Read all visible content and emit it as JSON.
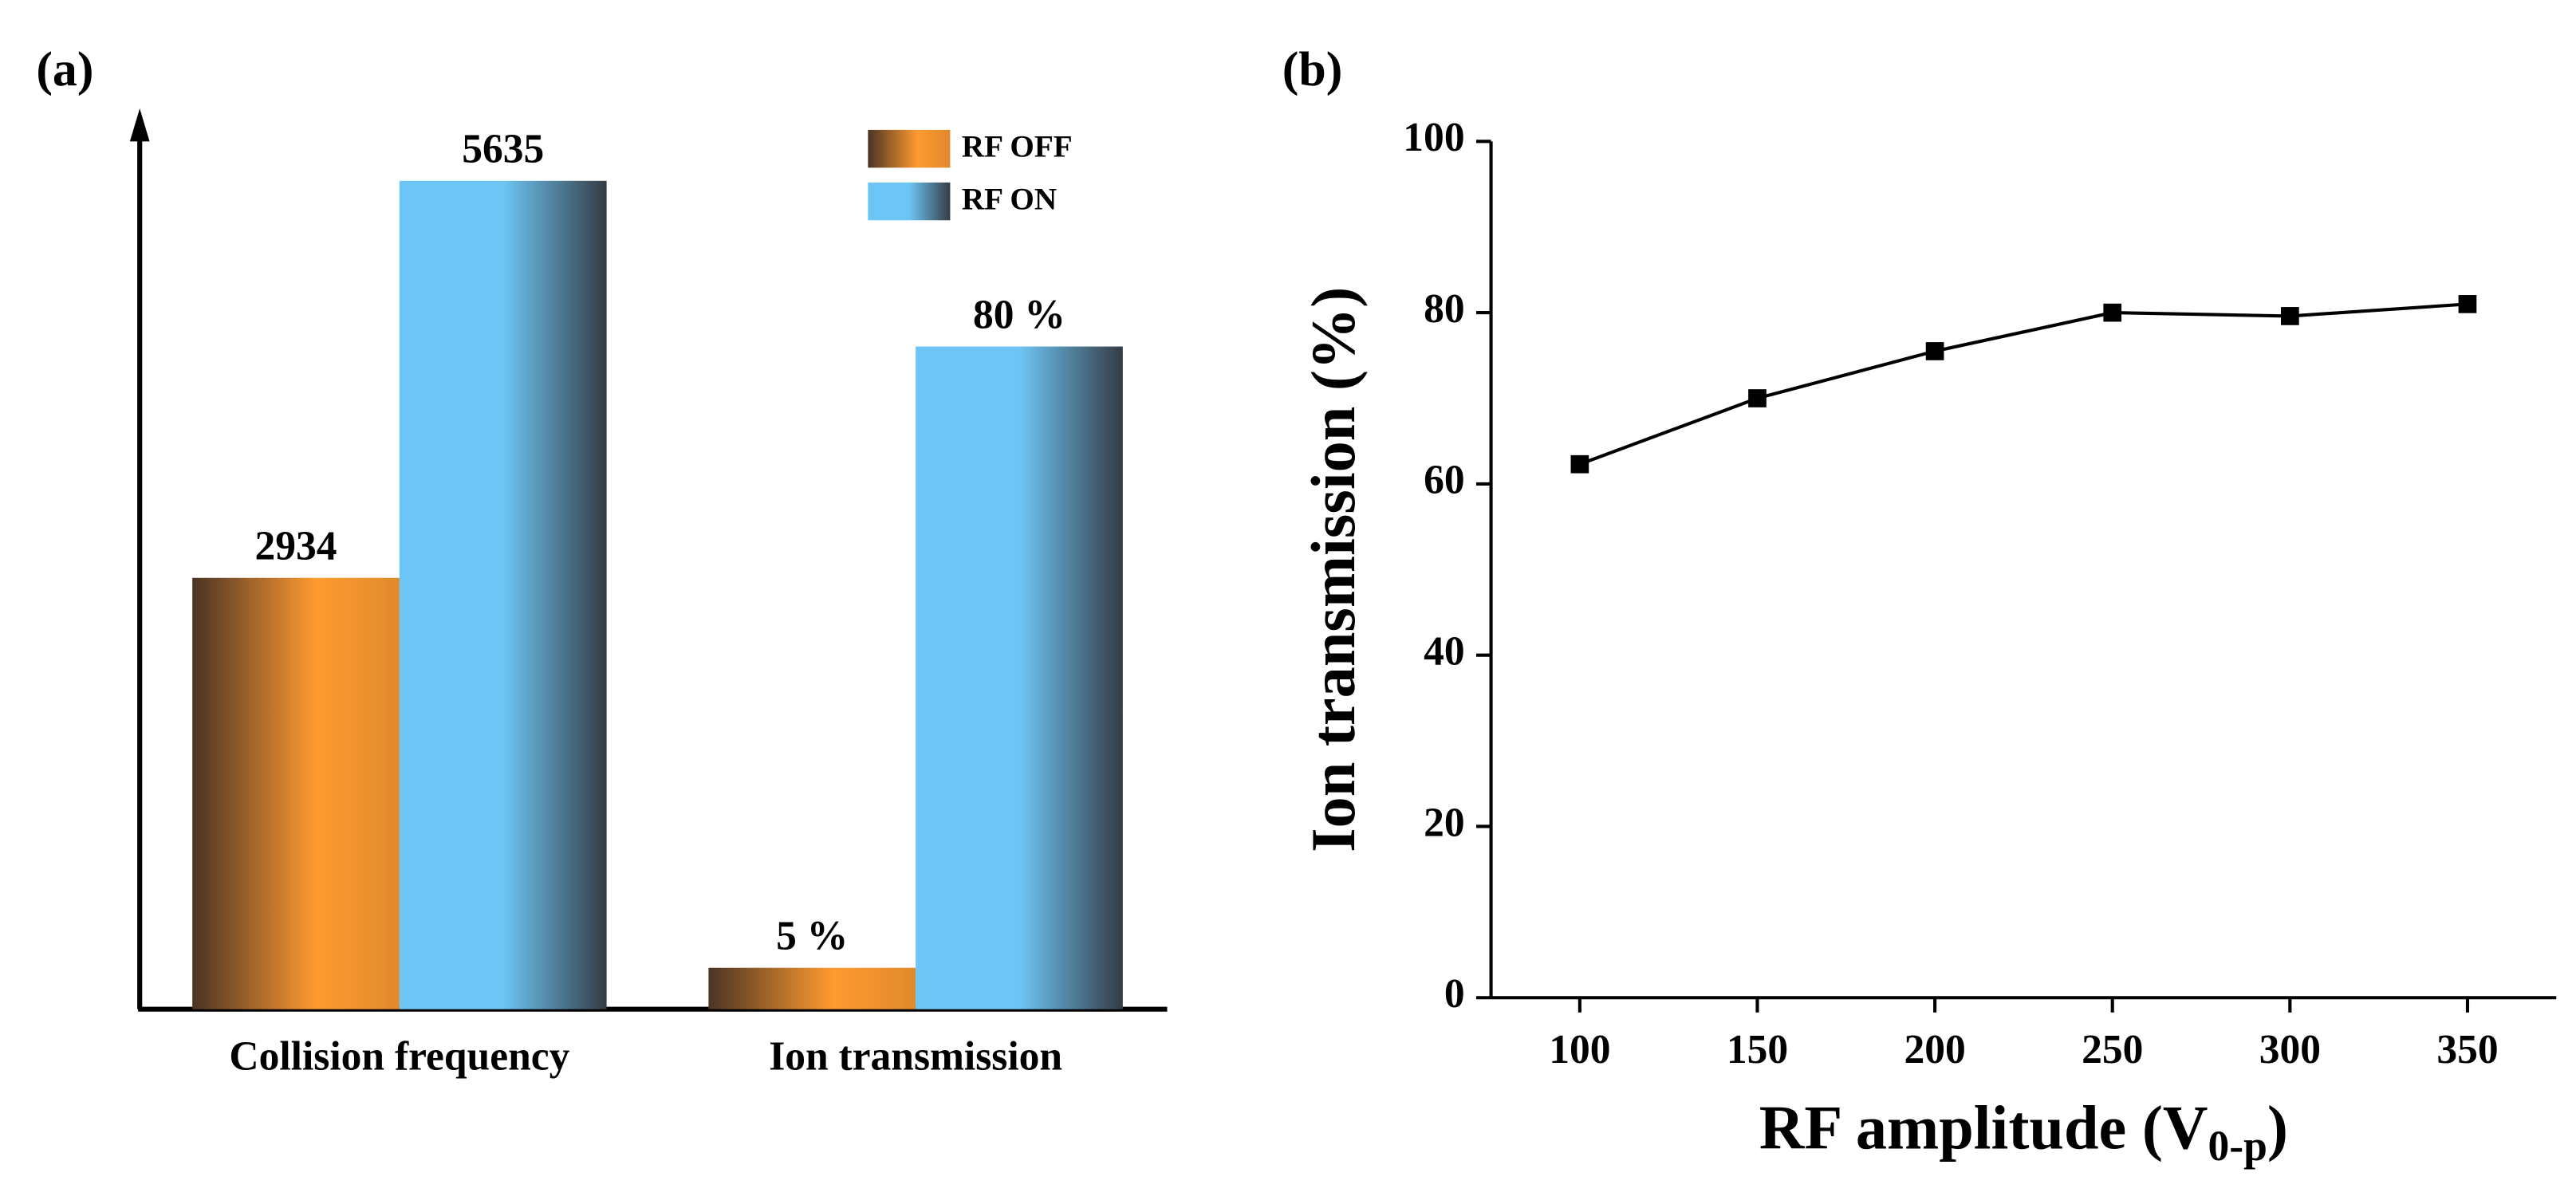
{
  "chart_data": [
    {
      "type": "bar",
      "panel": "(a)",
      "categories": [
        "Collision frequency",
        "Ion transmission"
      ],
      "series": [
        {
          "name": "RF OFF",
          "color": "#ff9a30",
          "values": [
            2934,
            5
          ],
          "value_labels": [
            "2934",
            "5 %"
          ]
        },
        {
          "name": "RF ON",
          "color": "#6cc5f5",
          "values": [
            5635,
            80
          ],
          "value_labels": [
            "5635",
            "80 %"
          ]
        }
      ],
      "legend": "upper right"
    },
    {
      "type": "line",
      "panel": "(b)",
      "xlabel": [
        "RF amplitude (V",
        "0-p",
        ")"
      ],
      "ylabel": "Ion transmission (%)",
      "x": [
        100,
        150,
        200,
        250,
        300,
        350
      ],
      "series": [
        {
          "color": "#000000",
          "values": [
            62.3,
            70,
            75.5,
            80,
            79.6,
            81
          ]
        }
      ],
      "xlim": [
        75,
        375
      ],
      "ylim": [
        0,
        100
      ],
      "xticks": [
        100,
        150,
        200,
        250,
        300,
        350
      ],
      "yticks": [
        0,
        20,
        40,
        60,
        80,
        100
      ]
    }
  ]
}
